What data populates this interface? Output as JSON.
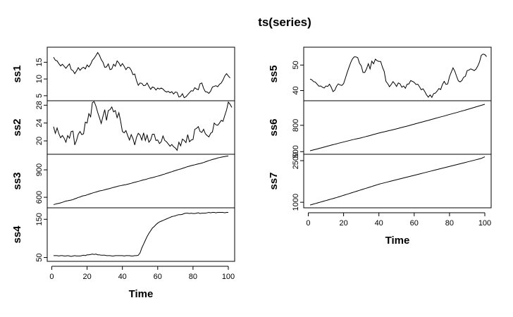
{
  "chart_data": {
    "type": "line",
    "title": "ts(series)",
    "xlabel": "Time",
    "xlim": [
      1,
      100
    ],
    "x_ticks": [
      0,
      20,
      40,
      60,
      80,
      100
    ],
    "grid": false,
    "series": [
      {
        "name": "ss1",
        "column": 0,
        "ylim": [
          3.5,
          19.5
        ],
        "y_ticks": [
          5,
          10,
          15
        ],
        "values": [
          16.5,
          15.6,
          15.4,
          14.6,
          13.9,
          14.4,
          13.8,
          13.2,
          13.9,
          14.5,
          12.8,
          12.5,
          11.6,
          12.4,
          13.4,
          12.6,
          13.2,
          13.5,
          13.0,
          14.2,
          13.6,
          14.4,
          15.6,
          16.2,
          17.0,
          17.9,
          17.1,
          15.8,
          15.0,
          13.5,
          13.6,
          14.5,
          12.8,
          13.0,
          14.4,
          13.8,
          15.4,
          14.8,
          13.8,
          14.6,
          13.8,
          12.8,
          13.5,
          13.4,
          12.6,
          11.3,
          11.5,
          9.5,
          8.1,
          8.8,
          8.7,
          8.0,
          8.1,
          8.8,
          7.8,
          6.9,
          7.6,
          7.4,
          6.7,
          7.3,
          7.0,
          7.3,
          7.0,
          6.4,
          6.1,
          6.3,
          5.9,
          6.2,
          5.5,
          6.1,
          6.0,
          4.6,
          4.8,
          5.6,
          4.4,
          4.7,
          5.3,
          5.9,
          6.5,
          6.4,
          7.4,
          7.0,
          6.8,
          8.6,
          8.8,
          7.2,
          6.2,
          6.1,
          5.7,
          6.4,
          7.6,
          7.8,
          8.0,
          7.7,
          8.4,
          8.8,
          9.7,
          10.9,
          11.6,
          10.9,
          10.3
        ]
      },
      {
        "name": "ss2",
        "column": 0,
        "ylim": [
          17,
          29
        ],
        "y_ticks": [
          20,
          24,
          28
        ],
        "values": [
          23.2,
          21.7,
          22.9,
          21.6,
          20.7,
          21.2,
          20.6,
          19.7,
          21.2,
          20.6,
          22.1,
          22.2,
          19.1,
          20.1,
          21.5,
          22.1,
          21.4,
          21.6,
          24.2,
          24.0,
          26.1,
          25.4,
          28.6,
          28.8,
          27.8,
          26.4,
          25.2,
          23.9,
          25.5,
          27.0,
          24.6,
          26.8,
          27.0,
          27.6,
          26.5,
          26.8,
          25.2,
          26.3,
          24.4,
          22.1,
          21.8,
          22.3,
          21.2,
          20.2,
          21.4,
          20.5,
          19.1,
          20.8,
          21.7,
          21.3,
          20.2,
          21.8,
          20.1,
          21.3,
          19.7,
          20.2,
          21.5,
          21.5,
          20.1,
          20.2,
          19.4,
          19.8,
          21.1,
          20.1,
          19.8,
          19.3,
          18.8,
          19.2,
          18.7,
          18.4,
          17.9,
          19.7,
          18.9,
          20.4,
          20.1,
          19.6,
          21.4,
          19.8,
          20.2,
          20.3,
          22.6,
          22.8,
          23.2,
          22.1,
          21.9,
          22.6,
          21.6,
          21.2,
          20.9,
          21.7,
          22.0,
          24.0,
          23.6,
          23.5,
          24.0,
          24.6,
          24.4,
          25.7,
          26.9,
          28.7,
          28.2,
          27.5
        ]
      },
      {
        "name": "ss3",
        "column": 0,
        "ylim": [
          485,
          1070
        ],
        "y_ticks": [
          600,
          900
        ],
        "values": [
          520,
          525,
          530,
          534,
          539,
          545,
          552,
          559,
          562,
          566,
          570,
          575,
          583,
          590,
          598,
          603,
          612,
          617,
          620,
          627,
          633,
          640,
          646,
          652,
          657,
          663,
          670,
          673,
          677,
          682,
          688,
          692,
          697,
          703,
          708,
          713,
          718,
          724,
          727,
          731,
          735,
          738,
          743,
          748,
          753,
          759,
          764,
          769,
          774,
          779,
          785,
          791,
          794,
          800,
          806,
          811,
          815,
          820,
          826,
          831,
          836,
          842,
          849,
          854,
          861,
          867,
          874,
          879,
          886,
          892,
          899,
          904,
          909,
          916,
          922,
          929,
          935,
          940,
          946,
          951,
          955,
          960,
          965,
          969,
          974,
          980,
          987,
          994,
          1001,
          1007,
          1013,
          1018,
          1023,
          1030,
          1034,
          1038,
          1042,
          1045,
          1049,
          1052
        ]
      },
      {
        "name": "ss4",
        "column": 0,
        "ylim": [
          40,
          180
        ],
        "y_ticks": [
          50,
          150
        ],
        "values": [
          55,
          55,
          55,
          54,
          55,
          55,
          54,
          54,
          55,
          54,
          53,
          54,
          55,
          54,
          54,
          54,
          55,
          56,
          55,
          57,
          57,
          58,
          59,
          58,
          59,
          57,
          57,
          56,
          56,
          56,
          55,
          55,
          55,
          54,
          54,
          55,
          55,
          55,
          55,
          55,
          54,
          55,
          55,
          55,
          54,
          54,
          55,
          55,
          56,
          62,
          75,
          85,
          95,
          105,
          113,
          120,
          127,
          131,
          136,
          140,
          143,
          145,
          147,
          149,
          151,
          153,
          155,
          157,
          158,
          159,
          161,
          162,
          162,
          163,
          165,
          166,
          166,
          165,
          166,
          165,
          165,
          166,
          167,
          165,
          166,
          166,
          166,
          167,
          168,
          167,
          168,
          168,
          167,
          168,
          168,
          168,
          168,
          167,
          168,
          168
        ]
      },
      {
        "name": "ss5",
        "column": 1,
        "ylim": [
          36,
          57
        ],
        "y_ticks": [
          40,
          50
        ],
        "values": [
          44.5,
          44.2,
          43.5,
          43.3,
          42.5,
          41.7,
          41.8,
          41.3,
          41.0,
          41.8,
          41.6,
          42.5,
          41.3,
          39.6,
          40.1,
          41.7,
          42.6,
          42.2,
          42.0,
          42.7,
          44.8,
          47.0,
          49.0,
          50.9,
          52.4,
          53.2,
          53.2,
          52.9,
          50.7,
          49.7,
          47.1,
          47.1,
          48.5,
          50.5,
          48.5,
          51.5,
          50.5,
          52.3,
          51.7,
          51.4,
          51.4,
          49.2,
          47.5,
          43.6,
          42.7,
          41.5,
          42.4,
          43.5,
          42.7,
          41.6,
          43.0,
          42.6,
          41.3,
          41.8,
          40.9,
          42.5,
          42.6,
          43.9,
          43.6,
          43.2,
          42.4,
          42.5,
          41.5,
          40.3,
          40.7,
          39.6,
          38.3,
          37.4,
          38.3,
          37.3,
          38.8,
          39.0,
          39.8,
          40.8,
          40.4,
          42.4,
          43.6,
          42.4,
          42.6,
          45.5,
          47.2,
          48.9,
          47.6,
          45.6,
          43.8,
          43.4,
          43.9,
          45.2,
          45.6,
          47.8,
          48.0,
          48.5,
          48.2,
          47.8,
          48.4,
          49.6,
          51.2,
          53.8,
          54.3,
          54.1,
          53.3
        ]
      },
      {
        "name": "ss6",
        "column": 1,
        "ylim": [
          470,
          1080
        ],
        "y_ticks": [
          500,
          800
        ],
        "values": [
          510,
          515,
          520,
          525,
          530,
          536,
          541,
          546,
          552,
          557,
          563,
          568,
          574,
          579,
          584,
          589,
          595,
          600,
          605,
          610,
          615,
          620,
          625,
          630,
          636,
          640,
          645,
          649,
          653,
          658,
          663,
          668,
          674,
          679,
          684,
          690,
          696,
          701,
          707,
          712,
          717,
          722,
          726,
          731,
          736,
          741,
          745,
          750,
          755,
          760,
          765,
          771,
          776,
          781,
          786,
          791,
          796,
          802,
          808,
          813,
          819,
          824,
          830,
          835,
          840,
          846,
          851,
          856,
          862,
          868,
          873,
          879,
          885,
          890,
          896,
          901,
          906,
          912,
          918,
          924,
          929,
          935,
          940,
          945,
          951,
          957,
          963,
          968,
          974,
          980,
          986,
          992,
          998,
          1004,
          1010,
          1016,
          1022,
          1028,
          1034,
          1040
        ]
      },
      {
        "name": "ss7",
        "column": 1,
        "ylim": [
          800,
          2730
        ],
        "y_ticks": [
          1000,
          2500
        ],
        "values": [
          900,
          918,
          936,
          954,
          972,
          990,
          1008,
          1026,
          1044,
          1062,
          1080,
          1098,
          1116,
          1134,
          1152,
          1170,
          1190,
          1210,
          1230,
          1250,
          1270,
          1290,
          1310,
          1330,
          1350,
          1370,
          1390,
          1410,
          1430,
          1450,
          1470,
          1490,
          1510,
          1530,
          1550,
          1570,
          1590,
          1610,
          1630,
          1650,
          1668,
          1684,
          1700,
          1716,
          1732,
          1748,
          1764,
          1780,
          1796,
          1812,
          1828,
          1844,
          1860,
          1876,
          1892,
          1908,
          1924,
          1940,
          1956,
          1972,
          1988,
          2004,
          2020,
          2036,
          2052,
          2068,
          2084,
          2100,
          2116,
          2132,
          2148,
          2164,
          2180,
          2196,
          2212,
          2228,
          2244,
          2260,
          2276,
          2292,
          2308,
          2324,
          2340,
          2356,
          2372,
          2388,
          2404,
          2420,
          2436,
          2452,
          2468,
          2484,
          2500,
          2516,
          2532,
          2548,
          2564,
          2580,
          2610,
          2640
        ]
      }
    ]
  }
}
